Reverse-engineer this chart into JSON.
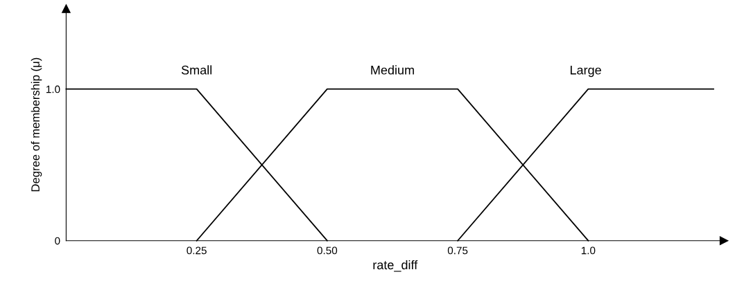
{
  "chart_data": {
    "type": "line",
    "xlabel": "rate_diff",
    "ylabel": "Degree of membership (μ)",
    "xlim": [
      0,
      1.26
    ],
    "ylim": [
      0,
      1.53
    ],
    "xticks": [
      0.25,
      {
        "value": 0.5,
        "label": "0.50"
      },
      0.75,
      {
        "value": 1,
        "label": "1.0"
      }
    ],
    "yticks": [
      0,
      {
        "value": 1,
        "label": "1.0"
      }
    ],
    "grid": false,
    "legend": false,
    "marker": "none",
    "line_style": "solid",
    "series": [
      {
        "name": "Small",
        "color": "#000000",
        "x": [
          0,
          0.25,
          0.5
        ],
        "values": [
          1,
          1,
          0
        ]
      },
      {
        "name": "Medium",
        "color": "#000000",
        "x": [
          0.25,
          0.5,
          0.75,
          1.0
        ],
        "values": [
          0,
          1,
          1,
          0
        ]
      },
      {
        "name": "Large",
        "color": "#000000",
        "x": [
          0.75,
          1.0,
          1.24
        ],
        "values": [
          0,
          1,
          1
        ]
      }
    ]
  }
}
